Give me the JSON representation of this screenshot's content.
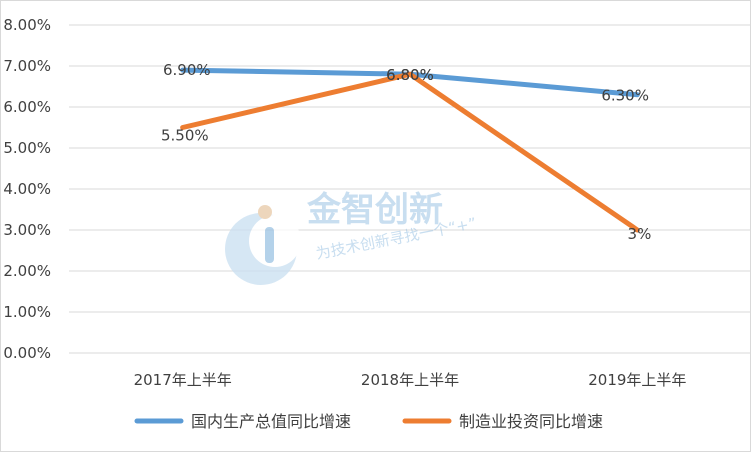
{
  "chart_data": {
    "type": "line",
    "title": "",
    "xlabel": "",
    "ylabel": "",
    "categories": [
      "2017年上半年",
      "2018年上半年",
      "2019年上半年"
    ],
    "ylim": [
      0,
      8
    ],
    "yticks": [
      0,
      1,
      2,
      3,
      4,
      5,
      6,
      7,
      8
    ],
    "ytick_labels": [
      "0.00%",
      "1.00%",
      "2.00%",
      "3.00%",
      "4.00%",
      "5.00%",
      "6.00%",
      "7.00%",
      "8.00%"
    ],
    "grid": true,
    "legend_position": "bottom",
    "series": [
      {
        "name": "国内生产总值同比增速",
        "values": [
          6.9,
          6.8,
          6.3
        ],
        "labels": [
          "6.90%",
          "6.80%",
          "6.30%"
        ],
        "color": "#5b9bd5"
      },
      {
        "name": "制造业投资同比增速",
        "values": [
          5.5,
          6.8,
          3.0
        ],
        "labels": [
          "5.50%",
          "6.80%",
          "3%"
        ],
        "color": "#ed7d31"
      }
    ]
  },
  "watermark": {
    "title": "金智创新",
    "subtitle": "为技术创新寻找一个“+”",
    "icon": "i-logo-icon",
    "color": "#9cc3e3"
  }
}
